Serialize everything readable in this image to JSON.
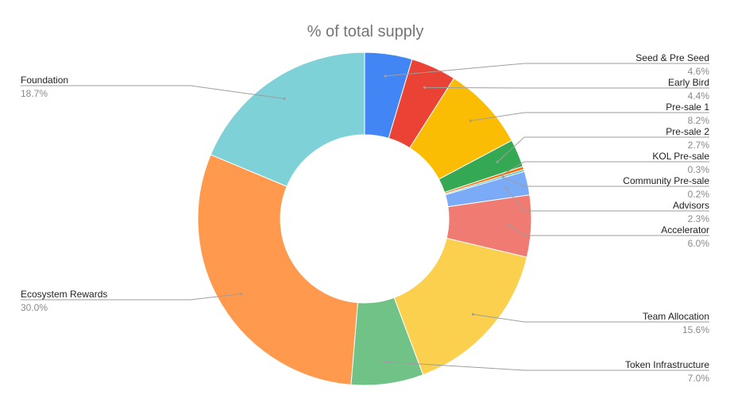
{
  "chart_data": {
    "type": "pie",
    "style": "donut",
    "title": "% of total supply",
    "legend": "labels with leader lines",
    "slices": [
      {
        "label": "Seed & Pre Seed",
        "value": 4.6,
        "display": "4.6%",
        "color": "#4285f4"
      },
      {
        "label": "Early Bird",
        "value": 4.4,
        "display": "4.4%",
        "color": "#ea4335"
      },
      {
        "label": "Pre-sale 1",
        "value": 8.2,
        "display": "8.2%",
        "color": "#fbbc04"
      },
      {
        "label": "Pre-sale 2",
        "value": 2.7,
        "display": "2.7%",
        "color": "#34a853"
      },
      {
        "label": "KOL Pre-sale",
        "value": 0.3,
        "display": "0.3%",
        "color": "#ff6d01"
      },
      {
        "label": "Community Pre-sale",
        "value": 0.2,
        "display": "0.2%",
        "color": "#46bdc6"
      },
      {
        "label": "Advisors",
        "value": 2.3,
        "display": "2.3%",
        "color": "#7baaf7"
      },
      {
        "label": "Accelerator",
        "value": 6.0,
        "display": "6.0%",
        "color": "#f07b72"
      },
      {
        "label": "Team Allocation",
        "value": 15.6,
        "display": "15.6%",
        "color": "#fcd04f"
      },
      {
        "label": "Token Infrastructure",
        "value": 7.0,
        "display": "7.0%",
        "color": "#71c287"
      },
      {
        "label": "Ecosystem Rewards",
        "value": 30.0,
        "display": "30.0%",
        "color": "#ff994d"
      },
      {
        "label": "Foundation",
        "value": 18.7,
        "display": "18.7%",
        "color": "#7ed1d7"
      }
    ]
  }
}
